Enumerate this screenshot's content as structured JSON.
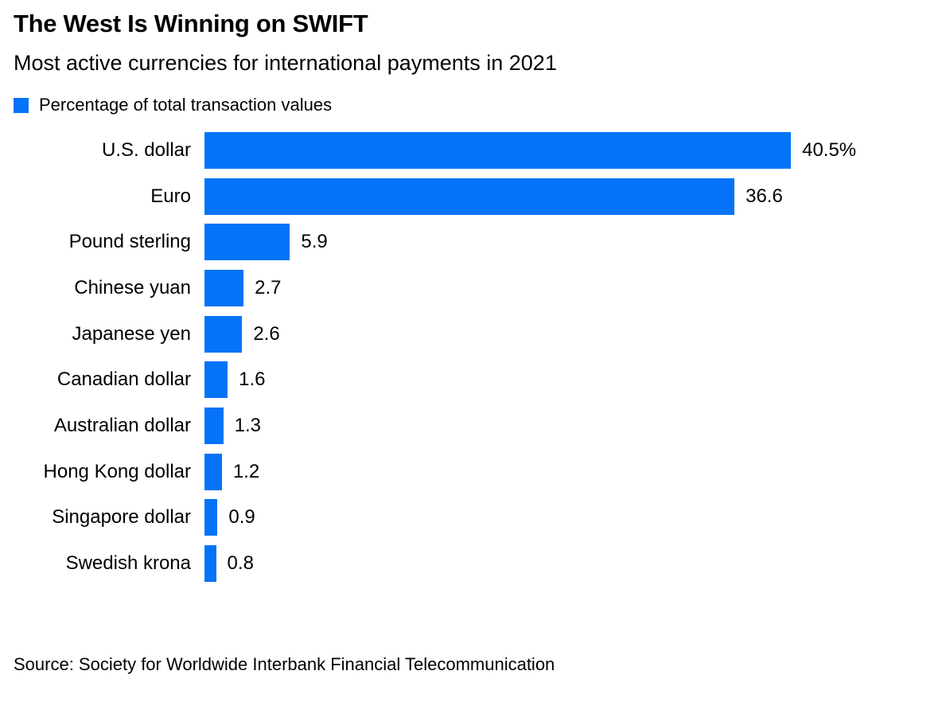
{
  "header": {
    "title": "The West Is Winning on SWIFT",
    "subtitle": "Most active currencies for international payments in 2021"
  },
  "legend": {
    "label": "Percentage of total transaction values",
    "swatch_color": "#0473f7"
  },
  "chart_data": {
    "type": "bar",
    "orientation": "horizontal",
    "title": "The West Is Winning on SWIFT",
    "subtitle": "Most active currencies for international payments in 2021",
    "series_name": "Percentage of total transaction values",
    "categories": [
      "U.S. dollar",
      "Euro",
      "Pound sterling",
      "Chinese yuan",
      "Japanese yen",
      "Canadian dollar",
      "Australian dollar",
      "Hong Kong dollar",
      "Singapore dollar",
      "Swedish krona"
    ],
    "values": [
      40.5,
      36.6,
      5.9,
      2.7,
      2.6,
      1.6,
      1.3,
      1.2,
      0.9,
      0.8
    ],
    "value_labels": [
      "40.5%",
      "36.6",
      "5.9",
      "2.7",
      "2.6",
      "1.6",
      "1.3",
      "1.2",
      "0.9",
      "0.8"
    ],
    "bar_color": "#0473f7",
    "xlabel": "",
    "ylabel": "",
    "xlim": [
      0,
      45
    ],
    "grid": false,
    "axes_shown": false,
    "legend_position": "top-left",
    "value_label_position": "end-of-bar"
  },
  "footer": {
    "source": "Source: Society for Worldwide Interbank Financial Telecommunication"
  }
}
